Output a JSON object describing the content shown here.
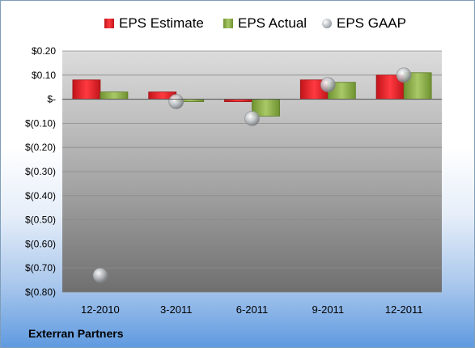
{
  "company_label": "Exterran Partners",
  "colors": {
    "estimate": "#e01b22",
    "estimate_dark": "#9e0f14",
    "actual": "#8eb248",
    "actual_dark": "#5b7a22",
    "gaap": "#b9bdc2"
  },
  "chart_data": {
    "type": "bar",
    "categories": [
      "12-2010",
      "3-2011",
      "6-2011",
      "9-2011",
      "12-2011"
    ],
    "series": [
      {
        "name": "EPS Estimate",
        "values": [
          0.08,
          0.03,
          -0.01,
          0.08,
          0.1
        ]
      },
      {
        "name": "EPS Actual",
        "values": [
          0.03,
          -0.01,
          -0.07,
          0.07,
          0.11
        ]
      },
      {
        "name": "EPS GAAP",
        "type": "scatter",
        "values": [
          -0.73,
          -0.01,
          -0.08,
          0.06,
          0.1
        ]
      }
    ],
    "yticks": [
      "$0.20",
      "$0.10",
      "$-",
      "$(0.10)",
      "$(0.20)",
      "$(0.30)",
      "$(0.40)",
      "$(0.50)",
      "$(0.60)",
      "$(0.70)",
      "$(0.80)"
    ],
    "ylim": [
      -0.8,
      0.2
    ],
    "grid": true,
    "legend_position": "top"
  }
}
